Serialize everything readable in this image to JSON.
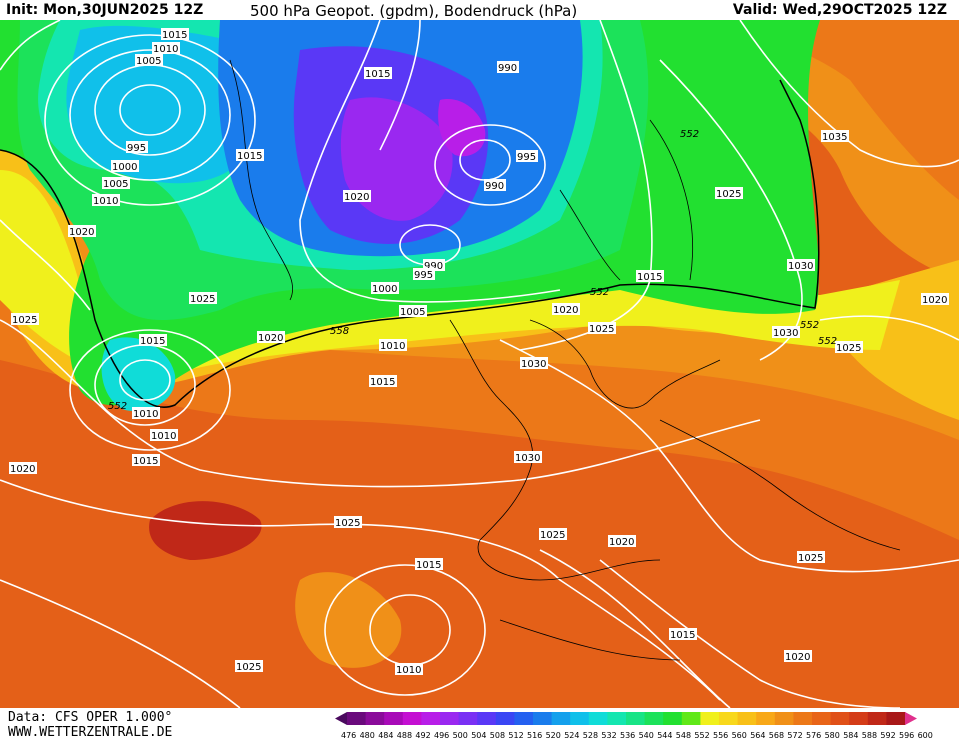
{
  "header": {
    "init": "Init: Mon,30JUN2025 12Z",
    "title": "500 hPa Geopot. (gpdm), Bodendruck (hPa)",
    "valid": "Valid: Wed,29OCT2025 12Z"
  },
  "footer": {
    "data_source": "Data: CFS OPER 1.000°",
    "website": "WWW.WETTERZENTRALE.DE"
  },
  "colorbar": {
    "labels": [
      "476",
      "480",
      "484",
      "488",
      "492",
      "496",
      "500",
      "504",
      "508",
      "512",
      "516",
      "520",
      "524",
      "528",
      "532",
      "536",
      "540",
      "544",
      "548",
      "552",
      "556",
      "560",
      "564",
      "568",
      "572",
      "576",
      "580",
      "584",
      "588",
      "592",
      "596",
      "600"
    ],
    "colors": [
      "#4a0a5e",
      "#6a0a7c",
      "#8a0b9a",
      "#a80ab8",
      "#c40fd2",
      "#b81ee8",
      "#9a28f0",
      "#7a30f4",
      "#5a38f6",
      "#3a46f4",
      "#2460f0",
      "#1a7cec",
      "#14a0ec",
      "#10c0ea",
      "#10dcd8",
      "#14e6b0",
      "#18e486",
      "#1ce25a",
      "#22e030",
      "#60e818",
      "#f0f01c",
      "#f8d81c",
      "#f8c018",
      "#f8a818",
      "#f09018",
      "#ec7818",
      "#e86418",
      "#e05018",
      "#d43c18",
      "#c02818",
      "#a81818",
      "#e0308c"
    ]
  },
  "isobar_labels": [
    "1015",
    "1010",
    "1005",
    "995",
    "1000",
    "1005",
    "1010",
    "1020",
    "1025",
    "1015",
    "1015",
    "990",
    "995",
    "990",
    "1020",
    "990",
    "995",
    "1000",
    "1005",
    "1010",
    "1015",
    "1020",
    "1025",
    "1030",
    "1035",
    "1025",
    "1030",
    "1015",
    "1020",
    "1025",
    "1030",
    "1025",
    "1020",
    "1025",
    "1015",
    "1010",
    "1010",
    "1015",
    "1020",
    "1025",
    "1030",
    "1025",
    "1020",
    "1025",
    "1015",
    "1020",
    "1015",
    "1010",
    "1020",
    "1025"
  ],
  "contour_labels_552": [
    "552",
    "552",
    "552",
    "558",
    "552",
    "552"
  ]
}
